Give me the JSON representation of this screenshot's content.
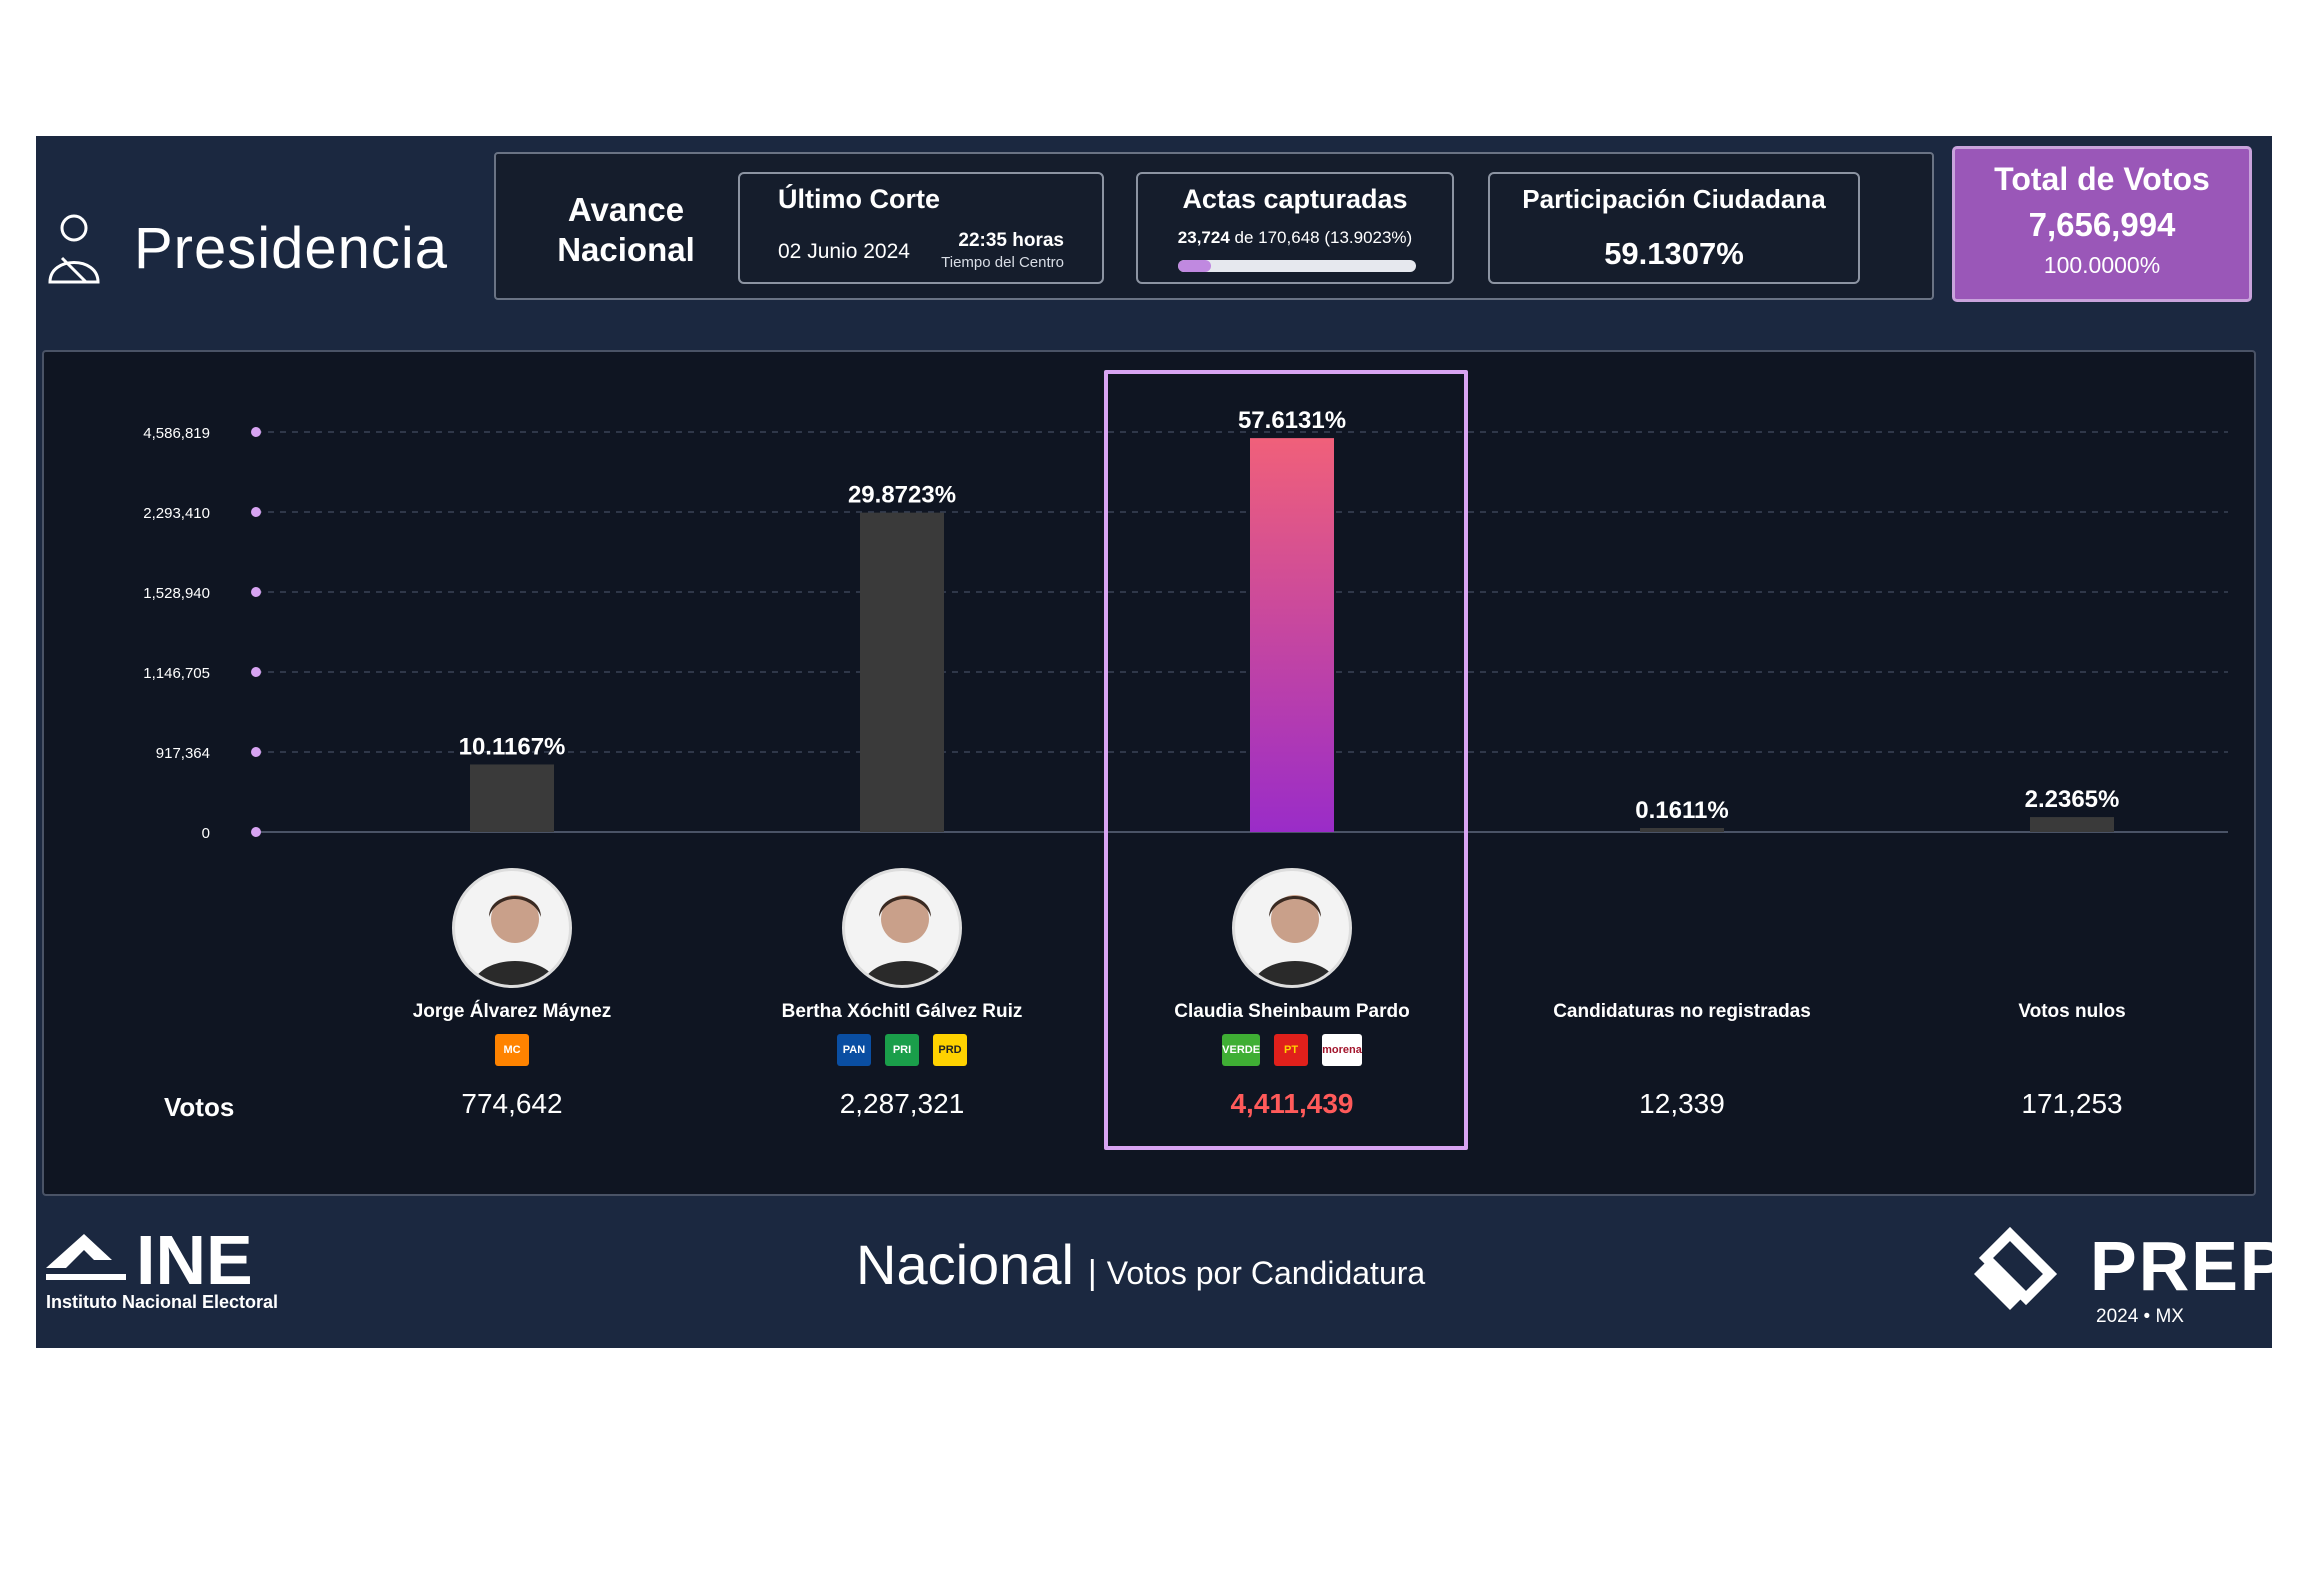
{
  "header": {
    "section_title": "Presidencia",
    "avance": [
      "Avance",
      "Nacional"
    ],
    "ultimo_corte": {
      "title": "Último Corte",
      "date": "02 Junio 2024",
      "time": "22:35 horas",
      "timezone": "Tiempo del Centro"
    },
    "actas": {
      "title": "Actas capturadas",
      "captured": "23,724",
      "of_text": "de 170,648 (13.9023%)",
      "progress_fraction": 0.139
    },
    "participacion": {
      "title": "Participación Ciudadana",
      "value": "59.1307%"
    },
    "total": {
      "title": "Total de Votos",
      "value": "7,656,994",
      "pct": "100.0000%"
    }
  },
  "votos_label": "Votos",
  "chart_data": {
    "type": "bar",
    "categories": [
      "Jorge Álvarez Máynez",
      "Bertha Xóchitl Gálvez Ruiz",
      "Claudia Sheinbaum Pardo",
      "Candidaturas no registradas",
      "Votos nulos"
    ],
    "values": [
      774642,
      2287321,
      4411439,
      12339,
      171253
    ],
    "percent_labels": [
      "10.1167%",
      "29.8723%",
      "57.6131%",
      "0.1611%",
      "2.2365%"
    ],
    "vote_labels": [
      "774,642",
      "2,287,321",
      "4,411,439",
      "12,339",
      "171,253"
    ],
    "y_ticks": [
      0,
      917364,
      1146705,
      1528940,
      2293410,
      4586819
    ],
    "y_tick_labels": [
      "0",
      "917,364",
      "1,146,705",
      "1,528,940",
      "2,293,410",
      "4,586,819"
    ],
    "y_scale": "non-linear",
    "grid": true,
    "highlight_index": 2
  },
  "candidates": [
    {
      "name": "Jorge Álvarez Máynez",
      "votes": "774,642",
      "parties": [
        {
          "label": "MC",
          "bg": "#ff8300",
          "fg": "#ffffff"
        }
      ]
    },
    {
      "name": "Bertha Xóchitl Gálvez Ruiz",
      "votes": "2,287,321",
      "parties": [
        {
          "label": "PAN",
          "bg": "#0a4ea2",
          "fg": "#ffffff"
        },
        {
          "label": "PRI",
          "bg": "#1a9e4a",
          "fg": "#ffffff"
        },
        {
          "label": "PRD",
          "bg": "#ffd200",
          "fg": "#222222"
        }
      ]
    },
    {
      "name": "Claudia Sheinbaum Pardo",
      "votes": "4,411,439",
      "parties": [
        {
          "label": "VERDE",
          "bg": "#3fae34",
          "fg": "#ffffff"
        },
        {
          "label": "PT",
          "bg": "#e0201b",
          "fg": "#ffd200"
        },
        {
          "label": "morena",
          "bg": "#ffffff",
          "fg": "#a3152c"
        }
      ]
    },
    {
      "name": "Candidaturas no registradas",
      "votes": "12,339",
      "parties": []
    },
    {
      "name": "Votos nulos",
      "votes": "171,253",
      "parties": []
    }
  ],
  "footer": {
    "ine_logo": "INE",
    "ine_sub": "Instituto Nacional Electoral",
    "title_main": "Nacional",
    "title_sub": "Votos por Candidatura",
    "prep_logo": "PREP",
    "prep_year": "2024 • MX"
  },
  "colors": {
    "background": "#1b2840",
    "panel": "#0f1522",
    "bar_default": "#3a3a3a",
    "bar_winner_top": "#f0607a",
    "bar_winner_bottom": "#9a2cc8",
    "accent": "#9a57b8",
    "winner_votes": "#ff5a5a"
  }
}
